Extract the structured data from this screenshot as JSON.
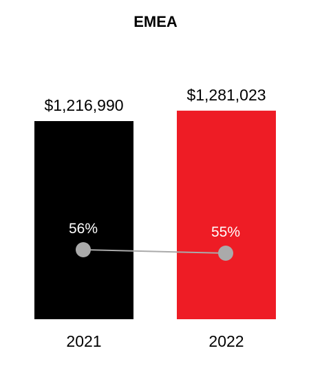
{
  "chart_data": {
    "type": "bar",
    "title": "EMEA",
    "categories": [
      "2021",
      "2022"
    ],
    "series": [
      {
        "values": [
          1216990,
          1281023
        ],
        "value_labels": [
          "$1,216,990",
          "$1,281,023"
        ],
        "colors": [
          "#000000",
          "#ee1c25"
        ]
      },
      {
        "type": "line",
        "values": [
          56,
          55
        ],
        "value_labels": [
          "56%",
          "55%"
        ],
        "color": "#aaaaaa"
      }
    ],
    "xlabel": "",
    "ylabel": "",
    "grid": false,
    "legend": "none"
  }
}
